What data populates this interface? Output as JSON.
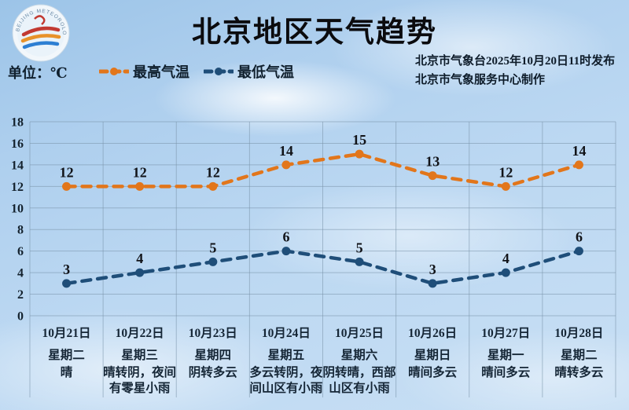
{
  "header": {
    "title": "北京地区天气趋势",
    "unit_label": "单位：℃",
    "logo_name": "beijing-meteorological-service-logo",
    "logo_ring_text": "BEIJING METEOROLOGICAL SERVICE",
    "source_line1": "北京市气象台2025年10月20日11时发布",
    "source_line2": "北京市气象服务中心制作",
    "legend": [
      {
        "label": "最高气温",
        "color": "#e2761b"
      },
      {
        "label": "最低气温",
        "color": "#1f4e79"
      }
    ]
  },
  "colors": {
    "high_line": "#e2761b",
    "low_line": "#1f4e79",
    "grid": "rgba(120,145,168,0.55)",
    "axis_text": "#14222e",
    "value_text": "#111318",
    "label_text": "#152636"
  },
  "chart_data": {
    "type": "line",
    "title": "北京地区天气趋势",
    "ylabel": "℃",
    "ylim": [
      0,
      18
    ],
    "ytick_step": 2,
    "grid": true,
    "legend_position": "top-left",
    "categories": [
      "10月21日",
      "10月22日",
      "10月23日",
      "10月24日",
      "10月25日",
      "10月26日",
      "10月27日",
      "10月28日"
    ],
    "weekdays": [
      "星期二",
      "星期三",
      "星期四",
      "星期五",
      "星期六",
      "星期日",
      "星期一",
      "星期二"
    ],
    "weather": [
      "晴",
      "晴转阴，夜间有零星小雨",
      "阴转多云",
      "多云转阴，夜间山区有小雨",
      "阴转晴，西部山区有小雨",
      "晴间多云",
      "晴间多云",
      "晴转多云"
    ],
    "weather_lines": [
      [
        "晴"
      ],
      [
        "晴转阴，夜间",
        "有零星小雨"
      ],
      [
        "阴转多云"
      ],
      [
        "多云转阴，夜",
        "间山区有小雨"
      ],
      [
        "阴转晴，西部",
        "山区有小雨"
      ],
      [
        "晴间多云"
      ],
      [
        "晴间多云"
      ],
      [
        "晴转多云"
      ]
    ],
    "series": [
      {
        "name": "最高气温",
        "color": "#e2761b",
        "values": [
          12,
          12,
          12,
          14,
          15,
          13,
          12,
          14
        ]
      },
      {
        "name": "最低气温",
        "color": "#1f4e79",
        "values": [
          3,
          4,
          5,
          6,
          5,
          3,
          4,
          6
        ]
      }
    ]
  }
}
